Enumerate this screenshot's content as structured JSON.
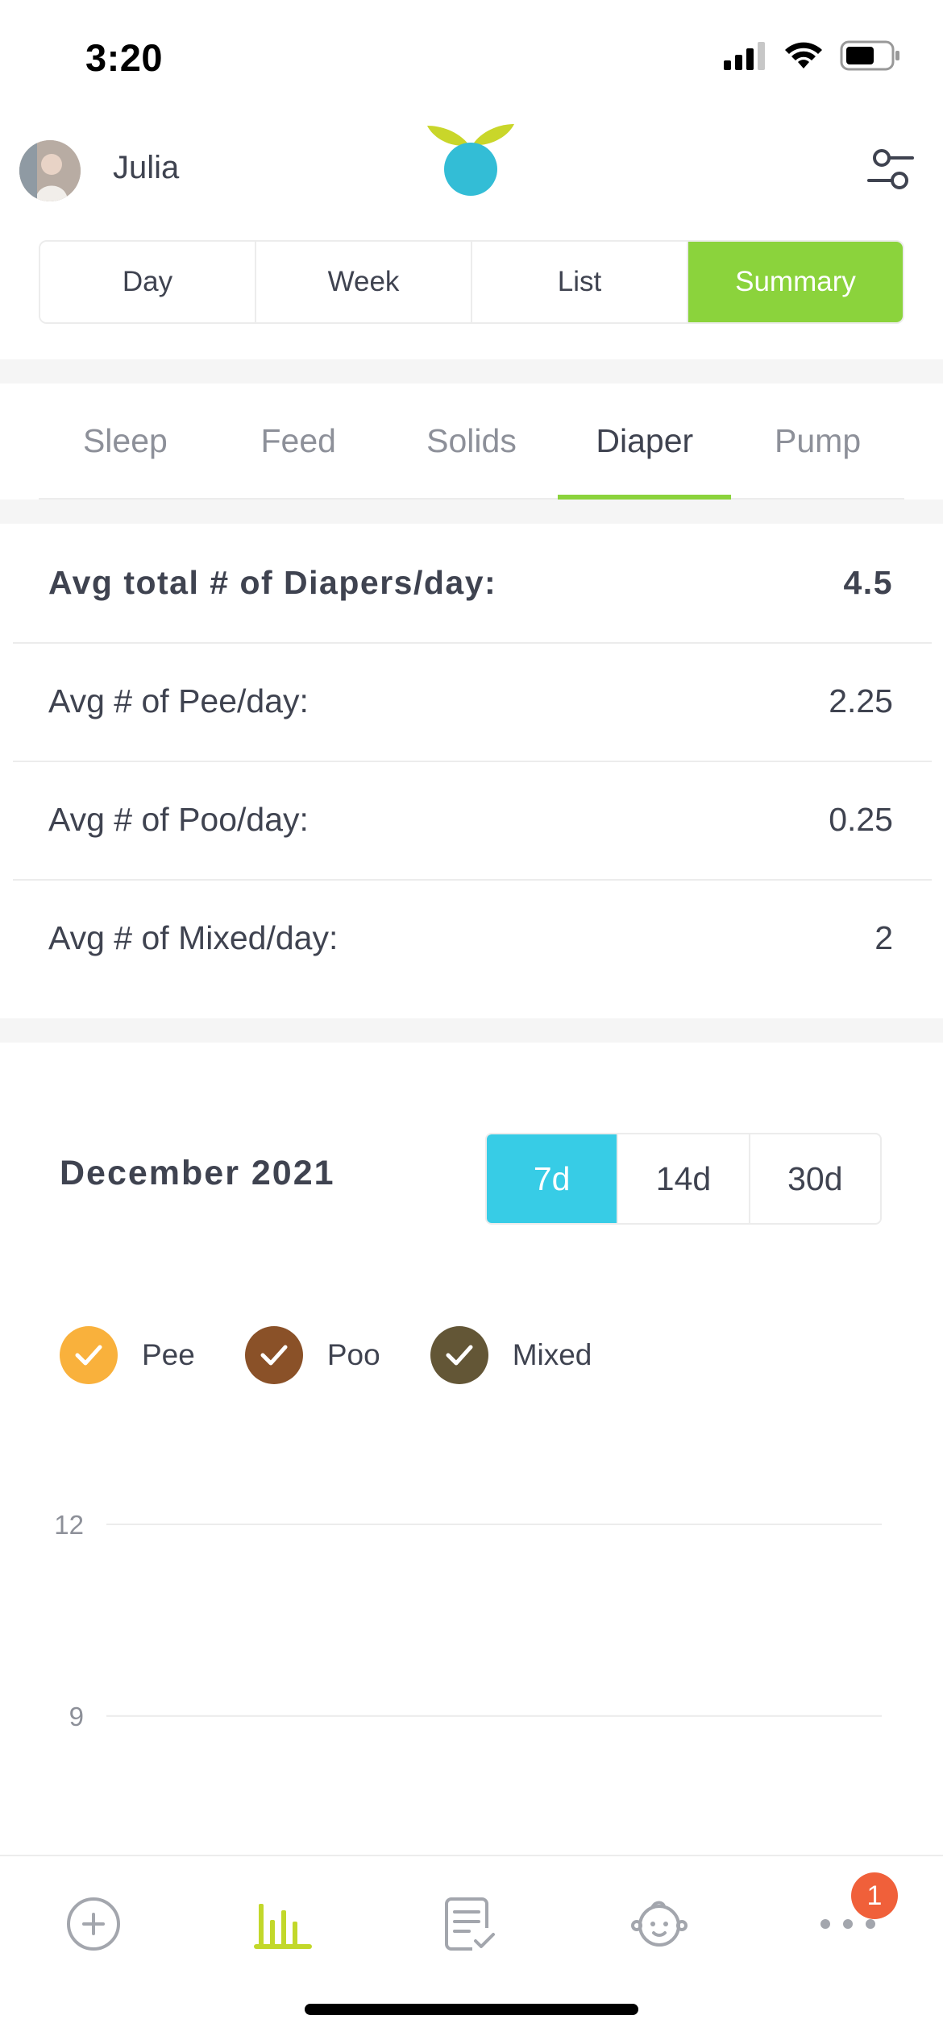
{
  "status_bar": {
    "time": "3:20"
  },
  "header": {
    "user_name": "Julia"
  },
  "view_tabs": [
    {
      "label": "Day",
      "active": false
    },
    {
      "label": "Week",
      "active": false
    },
    {
      "label": "List",
      "active": false
    },
    {
      "label": "Summary",
      "active": true
    }
  ],
  "category_tabs": [
    {
      "label": "Sleep",
      "active": false
    },
    {
      "label": "Feed",
      "active": false
    },
    {
      "label": "Solids",
      "active": false
    },
    {
      "label": "Diaper",
      "active": true
    },
    {
      "label": "Pump",
      "active": false
    }
  ],
  "stats": [
    {
      "label": "Avg total # of Diapers/day:",
      "value": "4.5"
    },
    {
      "label": "Avg # of Pee/day:",
      "value": "2.25"
    },
    {
      "label": "Avg # of Poo/day:",
      "value": "0.25"
    },
    {
      "label": "Avg # of Mixed/day:",
      "value": "2"
    }
  ],
  "chart_controls": {
    "month": "December 2021",
    "ranges": [
      {
        "label": "7d",
        "active": true
      },
      {
        "label": "14d",
        "active": false
      },
      {
        "label": "30d",
        "active": false
      }
    ]
  },
  "legend": [
    {
      "label": "Pee",
      "color": "#f9b13c",
      "checked": true
    },
    {
      "label": "Poo",
      "color": "#8a5128",
      "checked": true
    },
    {
      "label": "Mixed",
      "color": "#635636",
      "checked": true
    }
  ],
  "chart_data": {
    "type": "bar",
    "title": "",
    "xlabel": "",
    "ylabel": "",
    "grid": true,
    "y_ticks_visible": [
      12,
      9
    ],
    "series": [
      {
        "name": "Pee",
        "values": []
      },
      {
        "name": "Poo",
        "values": []
      },
      {
        "name": "Mixed",
        "values": []
      }
    ]
  },
  "bottom_nav": {
    "items": [
      {
        "icon": "add-circle-icon",
        "active": false
      },
      {
        "icon": "bar-chart-icon",
        "active": true
      },
      {
        "icon": "notes-check-icon",
        "active": false
      },
      {
        "icon": "baby-face-icon",
        "active": false
      },
      {
        "icon": "more-dots-icon",
        "active": false
      }
    ],
    "more_badge": "1"
  },
  "colors": {
    "accent_green": "#8bd33c",
    "accent_cyan": "#37cce6",
    "badge_red": "#f0603a",
    "text": "#3f4350",
    "muted": "#8d9099"
  }
}
